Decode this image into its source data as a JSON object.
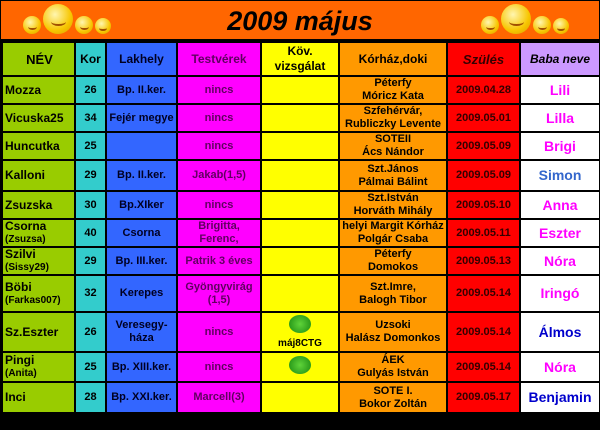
{
  "title": "2009 május",
  "colors": {
    "title_bg": "#ff6600",
    "nev": "#99cc00",
    "kor": "#33cccc",
    "lakhely": "#3366ff",
    "testverek": "#ff00ff",
    "kov": "#ffff00",
    "korhaz": "#ff9900",
    "szules": "#ff0000",
    "baba": "#cc99ff",
    "girl": "#ff00ff",
    "boy": "#3366cc",
    "boy_dark": "#0000cc"
  },
  "headers": [
    "NÉV",
    "Kor",
    "Lakhely",
    "Testvérek",
    "Köv. vizsgálat",
    "Kórház,doki",
    "Szülés",
    "Baba neve"
  ],
  "rows": [
    {
      "nev": "Mozza",
      "nick": "",
      "kor": "26",
      "lakhely": "Bp. II.ker.",
      "testverek": "nincs",
      "kov": "",
      "kov_icon": "",
      "korhaz1": "Péterfy",
      "korhaz2": "Móricz Kata",
      "szules": "2009.04.28",
      "baba": "Lili",
      "baba_color": "#ff00ff"
    },
    {
      "nev": "Vicuska25",
      "nick": "",
      "kor": "34",
      "lakhely": "Fejér megye",
      "testverek": "nincs",
      "kov": "",
      "kov_icon": "",
      "korhaz1": "Szfehérvár,",
      "korhaz2": "Rubliczky Levente",
      "szules": "2009.05.01",
      "baba": "Lilla",
      "baba_color": "#ff00ff"
    },
    {
      "nev": "Huncutka",
      "nick": "",
      "kor": "25",
      "lakhely": "",
      "testverek": "nincs",
      "kov": "",
      "kov_icon": "",
      "korhaz1": "SOTEII",
      "korhaz2": "Ács Nándor",
      "szules": "2009.05.09",
      "baba": "Brigi",
      "baba_color": "#ff00ff"
    },
    {
      "nev": "Kalloni",
      "nick": "",
      "kor": "29",
      "lakhely": "Bp. II.ker.",
      "testverek": "Jakab(1,5)",
      "kov": "",
      "kov_icon": "",
      "korhaz1": "Szt.János",
      "korhaz2": "Pálmai Bálint",
      "szules": "2009.05.09",
      "baba": "Simon",
      "baba_color": "#3366cc"
    },
    {
      "nev": "Zsuzska",
      "nick": "",
      "kor": "30",
      "lakhely": "Bp.XIker",
      "testverek": "nincs",
      "kov": "",
      "kov_icon": "",
      "korhaz1": "Szt.István",
      "korhaz2": "Horváth Mihály",
      "szules": "2009.05.10",
      "baba": "Anna",
      "baba_color": "#ff00ff"
    },
    {
      "nev": "Csorna",
      "nick": "(Zsuzsa)",
      "kor": "40",
      "lakhely": "Csorna",
      "testverek": "Brigitta, Ferenc,",
      "kov": "",
      "kov_icon": "",
      "korhaz1": "helyi Margit Kórház",
      "korhaz2": "Polgár Csaba",
      "szules": "2009.05.11",
      "baba": "Eszter",
      "baba_color": "#ff00ff"
    },
    {
      "nev": "Szilvi",
      "nick": "(Sissy29)",
      "kor": "29",
      "lakhely": "Bp. III.ker.",
      "testverek": "Patrik 3 éves",
      "kov": "",
      "kov_icon": "",
      "korhaz1": "Péterfy",
      "korhaz2": "Domokos",
      "szules": "2009.05.13",
      "baba": "Nóra",
      "baba_color": "#ff00ff"
    },
    {
      "nev": "Böbi",
      "nick": "(Farkas007)",
      "kor": "32",
      "lakhely": "Kerepes",
      "testverek": "Gyöngyvirág (1,5)",
      "kov": "",
      "kov_icon": "",
      "korhaz1": "Szt.Imre,",
      "korhaz2": "Balogh Tibor",
      "szules": "2009.05.14",
      "baba": "Iringó",
      "baba_color": "#ff00ff"
    },
    {
      "nev": "Sz.Eszter",
      "nick": "",
      "kor": "26",
      "lakhely": "Veresegy-háza",
      "testverek": "nincs",
      "kov": "máj8CTG",
      "kov_icon": "clover-thumbs-up-icon",
      "korhaz1": "Uzsoki",
      "korhaz2": "Halász Domonkos",
      "szules": "2009.05.14",
      "baba": "Álmos",
      "baba_color": "#0000cc"
    },
    {
      "nev": "Pingi",
      "nick": "(Anita)",
      "kor": "25",
      "lakhely": "Bp. XIII.ker.",
      "testverek": "nincs",
      "kov": "",
      "kov_icon": "clover-thumbs-up-icon",
      "korhaz1": "ÁEK",
      "korhaz2": "Gulyás István",
      "szules": "2009.05.14",
      "baba": "Nóra",
      "baba_color": "#ff00ff"
    },
    {
      "nev": "Inci",
      "nick": "",
      "kor": "28",
      "lakhely": "Bp. XXI.ker.",
      "testverek": "Marcell(3)",
      "kov": "",
      "kov_icon": "",
      "korhaz1": "SOTE I.",
      "korhaz2": "Bokor Zoltán",
      "szules": "2009.05.17",
      "baba": "Benjamin",
      "baba_color": "#0000cc"
    }
  ]
}
